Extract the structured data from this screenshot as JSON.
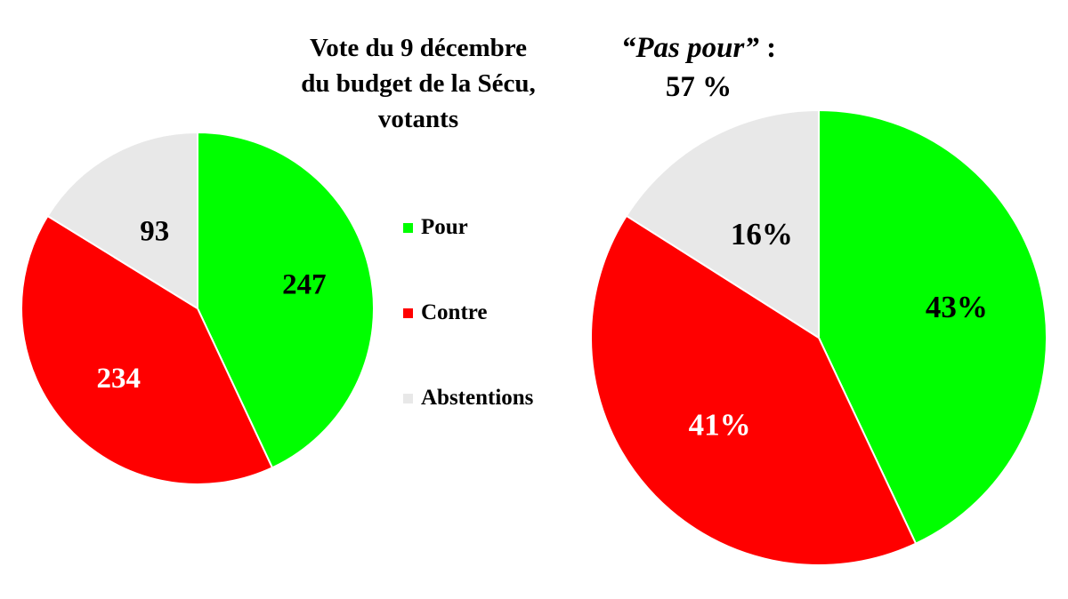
{
  "header": {
    "title_lines": [
      "Vote du 9 décembre",
      "du budget de la Sécu,",
      "votants"
    ],
    "headline_quote": "“Pas pour”",
    "headline_colon": " :",
    "headline_value": "57 %"
  },
  "colors": {
    "pour": "#00ff00",
    "contre": "#ff0000",
    "abstentions": "#e8e8e8",
    "label_dark": "#000000",
    "label_light": "#ffffff"
  },
  "legend": {
    "items": [
      {
        "label": "Pour",
        "color": "#00ff00"
      },
      {
        "label": "Contre",
        "color": "#ff0000"
      },
      {
        "label": "Abstentions",
        "color": "#e8e8e8"
      }
    ]
  },
  "chart_data": [
    {
      "type": "pie",
      "title": "",
      "categories": [
        "Pour",
        "Contre",
        "Abstentions"
      ],
      "values": [
        247,
        234,
        93
      ],
      "data_labels": [
        "247",
        "234",
        "93"
      ],
      "colors": [
        "#00ff00",
        "#ff0000",
        "#e8e8e8"
      ],
      "start_angle": "12 o'clock",
      "direction": "clockwise"
    },
    {
      "type": "pie",
      "title": "",
      "categories": [
        "Pour",
        "Contre",
        "Abstentions"
      ],
      "values": [
        43,
        41,
        16
      ],
      "unit": "%",
      "data_labels": [
        "43%",
        "41%",
        "16%"
      ],
      "colors": [
        "#00ff00",
        "#ff0000",
        "#e8e8e8"
      ],
      "start_angle": "12 o'clock",
      "direction": "clockwise"
    }
  ]
}
